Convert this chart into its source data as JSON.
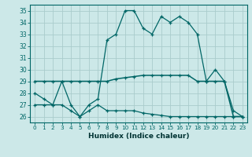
{
  "xlabel": "Humidex (Indice chaleur)",
  "background_color": "#cce8e8",
  "grid_color": "#aacccc",
  "line_color": "#006666",
  "hours": [
    0,
    1,
    2,
    3,
    4,
    5,
    6,
    7,
    8,
    9,
    10,
    11,
    12,
    13,
    14,
    15,
    16,
    17,
    18,
    19,
    20,
    21,
    22,
    23
  ],
  "line1": [
    28,
    27.5,
    27,
    29,
    27,
    26,
    27,
    27.5,
    32.5,
    33,
    35,
    35,
    33.5,
    33,
    34.5,
    34,
    34.5,
    34,
    33,
    29,
    30,
    29,
    26.5,
    26
  ],
  "line2": [
    29,
    29,
    29,
    29,
    29,
    29,
    29,
    29,
    29,
    29.2,
    29.3,
    29.4,
    29.5,
    29.5,
    29.5,
    29.5,
    29.5,
    29.5,
    29,
    29,
    29,
    29,
    26,
    26
  ],
  "line3": [
    27,
    27,
    27,
    27,
    26.5,
    26,
    26.5,
    27,
    26.5,
    26.5,
    26.5,
    26.5,
    26.3,
    26.2,
    26.1,
    26,
    26,
    26,
    26,
    26,
    26,
    26,
    26,
    26
  ],
  "ylim": [
    25.5,
    35.5
  ],
  "yticks": [
    26,
    27,
    28,
    29,
    30,
    31,
    32,
    33,
    34,
    35
  ]
}
